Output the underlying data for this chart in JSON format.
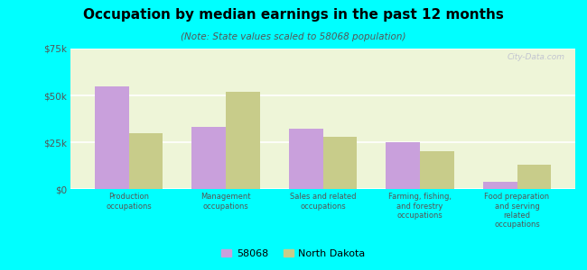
{
  "title": "Occupation by median earnings in the past 12 months",
  "subtitle": "(Note: State values scaled to 58068 population)",
  "categories": [
    "Production\noccupations",
    "Management\noccupations",
    "Sales and related\noccupations",
    "Farming, fishing,\nand forestry\noccupations",
    "Food preparation\nand serving\nrelated\noccupations"
  ],
  "values_58068": [
    55000,
    33000,
    32000,
    25000,
    4000
  ],
  "values_nd": [
    30000,
    52000,
    28000,
    20000,
    13000
  ],
  "color_58068": "#c9a0dc",
  "color_nd": "#c8cc8a",
  "ylim": [
    0,
    75000
  ],
  "yticks": [
    0,
    25000,
    50000,
    75000
  ],
  "ytick_labels": [
    "$0",
    "$25k",
    "$50k",
    "$75k"
  ],
  "legend_58068": "58068",
  "legend_nd": "North Dakota",
  "background_color": "#eef5d8",
  "outer_background": "#00ffff",
  "watermark": "City-Data.com",
  "bar_width": 0.35
}
